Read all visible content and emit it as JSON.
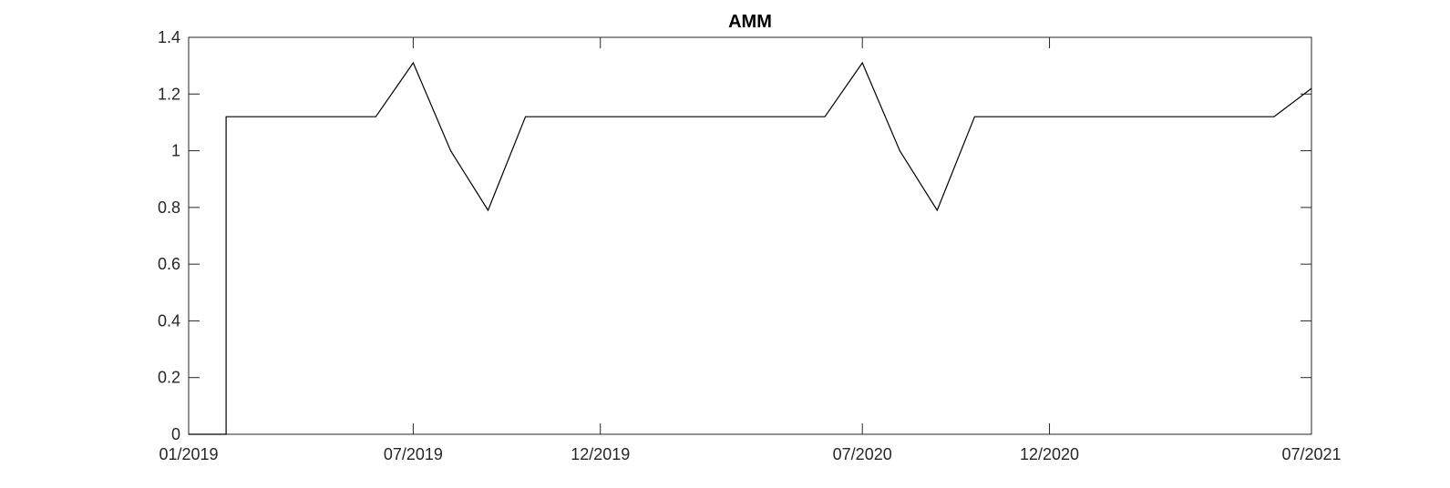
{
  "chart_data": {
    "type": "line",
    "title": "AMM",
    "xlabel": "",
    "ylabel": "",
    "xlim": [
      "2019-01",
      "2021-07"
    ],
    "ylim": [
      0,
      1.4
    ],
    "grid": false,
    "legend": "none",
    "x_ticks": [
      "01/2019",
      "07/2019",
      "12/2019",
      "07/2020",
      "12/2020",
      "07/2021"
    ],
    "y_ticks": [
      "0",
      "0.2",
      "0.4",
      "0.6",
      "0.8",
      "1",
      "1.2",
      "1.4"
    ],
    "line_color": "#000000",
    "axis_color": "#262626",
    "series": [
      {
        "x": [
          "2019-01",
          "2019-02",
          "2019-02",
          "2019-03",
          "2019-04",
          "2019-05",
          "2019-06",
          "2019-07",
          "2019-08",
          "2019-09",
          "2019-10",
          "2019-11",
          "2019-12",
          "2020-01",
          "2020-02",
          "2020-03",
          "2020-04",
          "2020-05",
          "2020-06",
          "2020-07",
          "2020-08",
          "2020-09",
          "2020-10",
          "2020-11",
          "2020-12",
          "2021-01",
          "2021-02",
          "2021-03",
          "2021-04",
          "2021-05",
          "2021-06",
          "2021-07"
        ],
        "y": [
          0,
          0,
          1.12,
          1.12,
          1.12,
          1.12,
          1.12,
          1.31,
          1.0,
          0.79,
          1.12,
          1.12,
          1.12,
          1.12,
          1.12,
          1.12,
          1.12,
          1.12,
          1.12,
          1.31,
          1.0,
          0.79,
          1.12,
          1.12,
          1.12,
          1.12,
          1.12,
          1.12,
          1.12,
          1.12,
          1.12,
          1.22
        ]
      }
    ]
  }
}
